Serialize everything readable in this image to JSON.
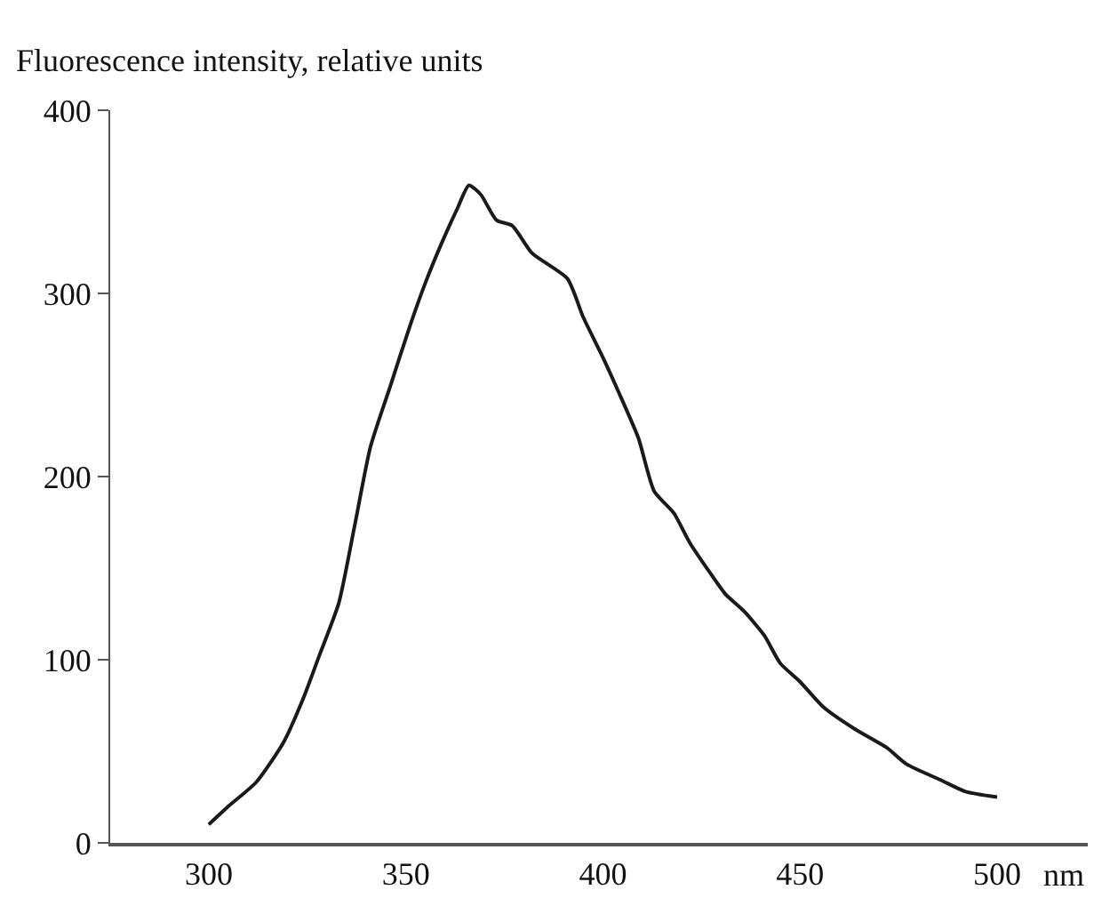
{
  "chart_data": {
    "type": "line",
    "ylabel": "Fluorescence intensity, relative units",
    "xlabel": "nm",
    "x": [
      300,
      305,
      312,
      319,
      324,
      328,
      333,
      337,
      341,
      346,
      351,
      355,
      359,
      363,
      366,
      369,
      373,
      377,
      382,
      391,
      395,
      400,
      404,
      409,
      413,
      418,
      422,
      427,
      431,
      436,
      441,
      445,
      450,
      456,
      464,
      472,
      477,
      486,
      492,
      500
    ],
    "series": [
      {
        "color": "#1a1a1a",
        "values": [
          10,
          20,
          33,
          55,
          79,
          102,
          131,
          173,
          216,
          249,
          282,
          306,
          327,
          346,
          359,
          354,
          340,
          337,
          322,
          308,
          287,
          265,
          246,
          221,
          192,
          180,
          164,
          148,
          136,
          126,
          113,
          98,
          88,
          74,
          62,
          52,
          43,
          34,
          28,
          25
        ]
      }
    ],
    "xlim": [
      275,
      523
    ],
    "xticks": [
      300,
      350,
      400,
      450,
      500
    ],
    "ylim": [
      0,
      400
    ],
    "yticks": [
      0,
      100,
      200,
      300,
      400
    ],
    "marker": "none"
  }
}
